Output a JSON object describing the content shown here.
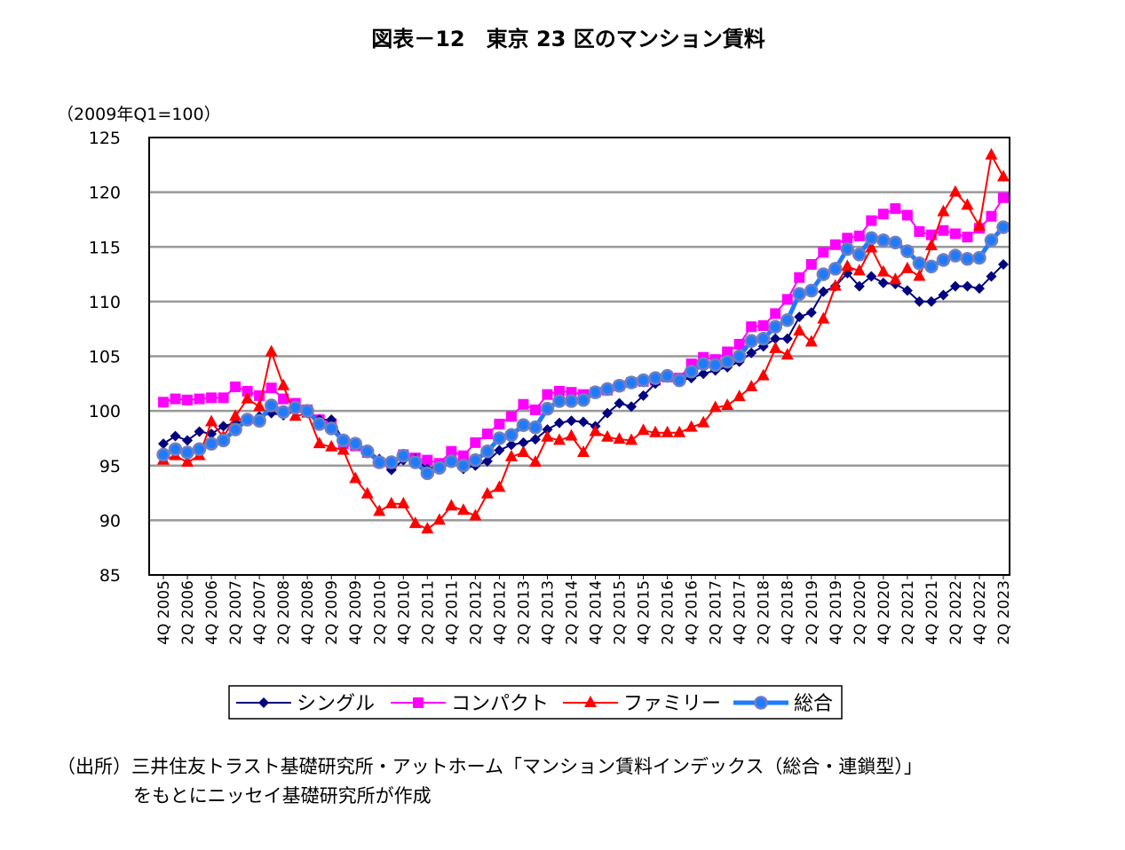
{
  "chart_data": {
    "type": "line",
    "title": "図表－12　東京 23 区のマンション賃料",
    "ylabel": "（2009年Q1=100）",
    "xlabel": "",
    "ylim": [
      85,
      125
    ],
    "yticks": [
      85,
      90,
      95,
      100,
      105,
      110,
      115,
      120,
      125
    ],
    "grid": true,
    "legend_position": "bottom",
    "x_tick_labels": [
      "4Q 2005",
      "2Q 2006",
      "4Q 2006",
      "2Q 2007",
      "4Q 2007",
      "2Q 2008",
      "4Q 2008",
      "2Q 2009",
      "4Q 2009",
      "2Q 2010",
      "4Q 2010",
      "2Q 2011",
      "4Q 2011",
      "2Q 2012",
      "4Q 2012",
      "2Q 2013",
      "4Q 2013",
      "2Q 2014",
      "4Q 2014",
      "2Q 2015",
      "4Q 2015",
      "2Q 2016",
      "4Q 2016",
      "2Q 2017",
      "4Q 2017",
      "2Q 2018",
      "4Q 2018",
      "2Q 2019",
      "4Q 2019",
      "2Q 2020",
      "4Q 2020",
      "2Q 2021",
      "4Q 2021",
      "2Q 2022",
      "4Q 2022",
      "2Q 2023"
    ],
    "series": [
      {
        "name": "シングル",
        "color": "#000080",
        "marker": "diamond",
        "values": [
          97.0,
          97.7,
          97.3,
          98.1,
          97.9,
          98.6,
          98.9,
          99.1,
          99.5,
          99.8,
          99.6,
          100.0,
          99.8,
          99.2,
          99.2,
          97.3,
          97.0,
          96.4,
          95.6,
          94.6,
          95.5,
          95.6,
          94.7,
          95.0,
          95.3,
          94.7,
          95.0,
          95.4,
          96.4,
          96.9,
          97.1,
          97.4,
          98.3,
          98.9,
          99.1,
          99.0,
          98.6,
          99.8,
          100.7,
          100.4,
          101.4,
          102.5,
          103.1,
          102.8,
          103.0,
          103.4,
          103.7,
          104.0,
          104.5,
          105.3,
          105.9,
          106.6,
          106.6,
          108.6,
          109.0,
          110.9,
          111.4,
          112.6,
          111.4,
          112.3,
          111.7,
          111.6,
          111.0,
          110.0,
          110.0,
          110.6,
          111.4,
          111.4,
          111.2,
          112.3,
          113.4
        ]
      },
      {
        "name": "コンパクト",
        "color": "#FF00FF",
        "marker": "square",
        "values": [
          100.8,
          101.1,
          101.0,
          101.1,
          101.2,
          101.2,
          102.2,
          101.8,
          101.4,
          102.1,
          101.1,
          100.7,
          100.1,
          99.2,
          98.8,
          97.0,
          96.8,
          96.2,
          95.3,
          95.2,
          96.0,
          95.7,
          95.5,
          95.2,
          96.3,
          95.9,
          97.1,
          97.9,
          98.8,
          99.5,
          100.6,
          100.1,
          101.5,
          101.8,
          101.7,
          101.5,
          101.7,
          101.9,
          102.3,
          102.6,
          102.7,
          102.8,
          103.1,
          103.0,
          104.3,
          104.9,
          104.7,
          105.4,
          106.1,
          107.7,
          107.8,
          108.9,
          110.2,
          112.2,
          113.4,
          114.5,
          115.2,
          115.8,
          116.0,
          117.4,
          118.0,
          118.5,
          117.9,
          116.4,
          116.1,
          116.5,
          116.2,
          115.9,
          116.7,
          117.8,
          119.5
        ]
      },
      {
        "name": "ファミリー",
        "color": "#FF0000",
        "marker": "triangle",
        "values": [
          95.5,
          95.9,
          95.3,
          95.9,
          99.0,
          97.6,
          99.5,
          101.1,
          100.4,
          105.4,
          102.3,
          99.5,
          99.8,
          97.0,
          96.7,
          96.4,
          93.8,
          92.4,
          90.8,
          91.5,
          91.5,
          89.7,
          89.2,
          90.0,
          91.3,
          90.9,
          90.4,
          92.4,
          93.0,
          95.8,
          96.2,
          95.3,
          97.6,
          97.3,
          97.7,
          96.2,
          98.1,
          97.6,
          97.4,
          97.3,
          98.2,
          98.0,
          98.0,
          98.0,
          98.5,
          98.9,
          100.3,
          100.5,
          101.3,
          102.2,
          103.2,
          105.7,
          105.1,
          107.3,
          106.3,
          108.4,
          111.4,
          113.2,
          112.8,
          114.9,
          112.7,
          112.0,
          113.0,
          112.3,
          115.1,
          118.2,
          120.0,
          118.8,
          116.9,
          123.4,
          121.4
        ]
      },
      {
        "name": "総合",
        "color": "#1E7BFF",
        "marker": "circle",
        "values": [
          96.0,
          96.5,
          96.2,
          96.5,
          97.0,
          97.3,
          98.3,
          99.2,
          99.1,
          100.5,
          99.9,
          100.3,
          100.0,
          98.8,
          98.4,
          97.3,
          97.0,
          96.3,
          95.3,
          95.3,
          95.9,
          95.3,
          94.3,
          94.8,
          95.4,
          95.0,
          95.5,
          96.3,
          97.5,
          97.8,
          98.7,
          98.5,
          100.2,
          100.9,
          100.9,
          101.0,
          101.7,
          102.0,
          102.3,
          102.6,
          102.8,
          103.0,
          103.2,
          102.8,
          103.6,
          104.3,
          104.2,
          104.5,
          105.0,
          106.4,
          106.6,
          107.7,
          108.3,
          110.7,
          111.0,
          112.5,
          113.0,
          114.8,
          114.3,
          115.8,
          115.6,
          115.4,
          114.6,
          113.5,
          113.2,
          113.8,
          114.2,
          113.9,
          114.0,
          115.6,
          116.8
        ]
      }
    ]
  },
  "footnote": {
    "line1": "（出所）三井住友トラスト基礎研究所・アットホーム「マンション賃料インデックス（総合・連鎖型）」",
    "line2": "をもとにニッセイ基礎研究所が作成"
  }
}
